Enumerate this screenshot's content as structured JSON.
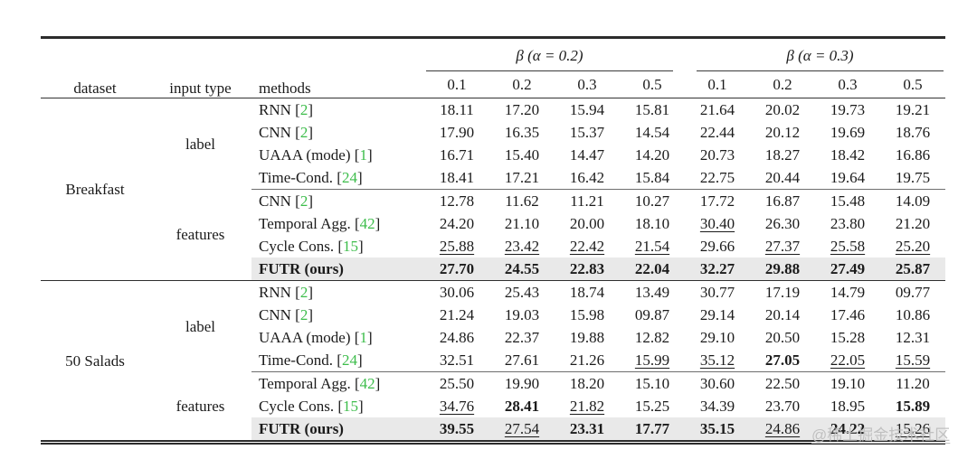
{
  "watermark": "@稀土掘金技术社区",
  "colors": {
    "cite_green": "#3dbd4b",
    "highlight_row": "#e9e9e9",
    "rule_dark": "#2c2c2c",
    "rule_mid": "#6e6e6e",
    "watermark_gray": "#bcbcbc"
  },
  "header": {
    "dataset": "dataset",
    "input_type": "input type",
    "methods": "methods",
    "groups": [
      {
        "label": "β (α = 0.2)",
        "subcols": [
          "0.1",
          "0.2",
          "0.3",
          "0.5"
        ]
      },
      {
        "label": "β (α = 0.3)",
        "subcols": [
          "0.1",
          "0.2",
          "0.3",
          "0.5"
        ]
      }
    ]
  },
  "sections": [
    {
      "dataset": "Breakfast",
      "groups": [
        {
          "input_type": "label",
          "rows": [
            {
              "method": "RNN",
              "cite": "2",
              "highlight": false,
              "cells": [
                "18.11",
                "17.20",
                "15.94",
                "15.81",
                "21.64",
                "20.02",
                "19.73",
                "19.21"
              ]
            },
            {
              "method": "CNN",
              "cite": "2",
              "highlight": false,
              "cells": [
                "17.90",
                "16.35",
                "15.37",
                "14.54",
                "22.44",
                "20.12",
                "19.69",
                "18.76"
              ]
            },
            {
              "method": "UAAA (mode)",
              "cite": "1",
              "highlight": false,
              "cells": [
                "16.71",
                "15.40",
                "14.47",
                "14.20",
                "20.73",
                "18.27",
                "18.42",
                "16.86"
              ]
            },
            {
              "method": "Time-Cond.",
              "cite": "24",
              "highlight": false,
              "cells": [
                "18.41",
                "17.21",
                "16.42",
                "15.84",
                "22.75",
                "20.44",
                "19.64",
                "19.75"
              ]
            }
          ]
        },
        {
          "input_type": "features",
          "rows": [
            {
              "method": "CNN",
              "cite": "2",
              "highlight": false,
              "cells": [
                "12.78",
                "11.62",
                "11.21",
                "10.27",
                "17.72",
                "16.87",
                "15.48",
                "14.09"
              ]
            },
            {
              "method": "Temporal Agg.",
              "cite": "42",
              "highlight": false,
              "cells": [
                "24.20",
                "21.10",
                "20.00",
                "18.10",
                {
                  "v": "30.40",
                  "em": "u"
                },
                "26.30",
                "23.80",
                "21.20"
              ]
            },
            {
              "method": "Cycle Cons.",
              "cite": "15",
              "highlight": false,
              "cells": [
                {
                  "v": "25.88",
                  "em": "u"
                },
                {
                  "v": "23.42",
                  "em": "u"
                },
                {
                  "v": "22.42",
                  "em": "u"
                },
                {
                  "v": "21.54",
                  "em": "u"
                },
                "29.66",
                {
                  "v": "27.37",
                  "em": "u"
                },
                {
                  "v": "25.58",
                  "em": "u"
                },
                {
                  "v": "25.20",
                  "em": "u"
                }
              ]
            },
            {
              "method": "FUTR (ours)",
              "cite": "",
              "bold_method": true,
              "highlight": true,
              "cells": [
                {
                  "v": "27.70",
                  "em": "b"
                },
                {
                  "v": "24.55",
                  "em": "b"
                },
                {
                  "v": "22.83",
                  "em": "b"
                },
                {
                  "v": "22.04",
                  "em": "b"
                },
                {
                  "v": "32.27",
                  "em": "b"
                },
                {
                  "v": "29.88",
                  "em": "b"
                },
                {
                  "v": "27.49",
                  "em": "b"
                },
                {
                  "v": "25.87",
                  "em": "b"
                }
              ]
            }
          ]
        }
      ]
    },
    {
      "dataset": "50 Salads",
      "groups": [
        {
          "input_type": "label",
          "rows": [
            {
              "method": "RNN",
              "cite": "2",
              "highlight": false,
              "cells": [
                "30.06",
                "25.43",
                "18.74",
                "13.49",
                "30.77",
                "17.19",
                "14.79",
                "09.77"
              ]
            },
            {
              "method": "CNN",
              "cite": "2",
              "highlight": false,
              "cells": [
                "21.24",
                "19.03",
                "15.98",
                "09.87",
                "29.14",
                "20.14",
                "17.46",
                "10.86"
              ]
            },
            {
              "method": "UAAA (mode)",
              "cite": "1",
              "highlight": false,
              "cells": [
                "24.86",
                "22.37",
                "19.88",
                "12.82",
                "29.10",
                "20.50",
                "15.28",
                "12.31"
              ]
            },
            {
              "method": "Time-Cond.",
              "cite": "24",
              "highlight": false,
              "cells": [
                "32.51",
                "27.61",
                "21.26",
                {
                  "v": "15.99",
                  "em": "u"
                },
                {
                  "v": "35.12",
                  "em": "u"
                },
                {
                  "v": "27.05",
                  "em": "b"
                },
                {
                  "v": "22.05",
                  "em": "u"
                },
                {
                  "v": "15.59",
                  "em": "u"
                }
              ]
            }
          ]
        },
        {
          "input_type": "features",
          "rows": [
            {
              "method": "Temporal Agg.",
              "cite": "42",
              "highlight": false,
              "cells": [
                "25.50",
                "19.90",
                "18.20",
                "15.10",
                "30.60",
                "22.50",
                "19.10",
                "11.20"
              ]
            },
            {
              "method": "Cycle Cons.",
              "cite": "15",
              "highlight": false,
              "cells": [
                {
                  "v": "34.76",
                  "em": "u"
                },
                {
                  "v": "28.41",
                  "em": "b"
                },
                {
                  "v": "21.82",
                  "em": "u"
                },
                "15.25",
                "34.39",
                "23.70",
                "18.95",
                {
                  "v": "15.89",
                  "em": "b"
                }
              ]
            },
            {
              "method": "FUTR (ours)",
              "cite": "",
              "bold_method": true,
              "highlight": true,
              "cells": [
                {
                  "v": "39.55",
                  "em": "b"
                },
                {
                  "v": "27.54",
                  "em": "u"
                },
                {
                  "v": "23.31",
                  "em": "b"
                },
                {
                  "v": "17.77",
                  "em": "b"
                },
                {
                  "v": "35.15",
                  "em": "b"
                },
                {
                  "v": "24.86",
                  "em": "u"
                },
                {
                  "v": "24.22",
                  "em": "b"
                },
                {
                  "v": "15.26",
                  "em": "u"
                }
              ]
            }
          ]
        }
      ]
    }
  ]
}
